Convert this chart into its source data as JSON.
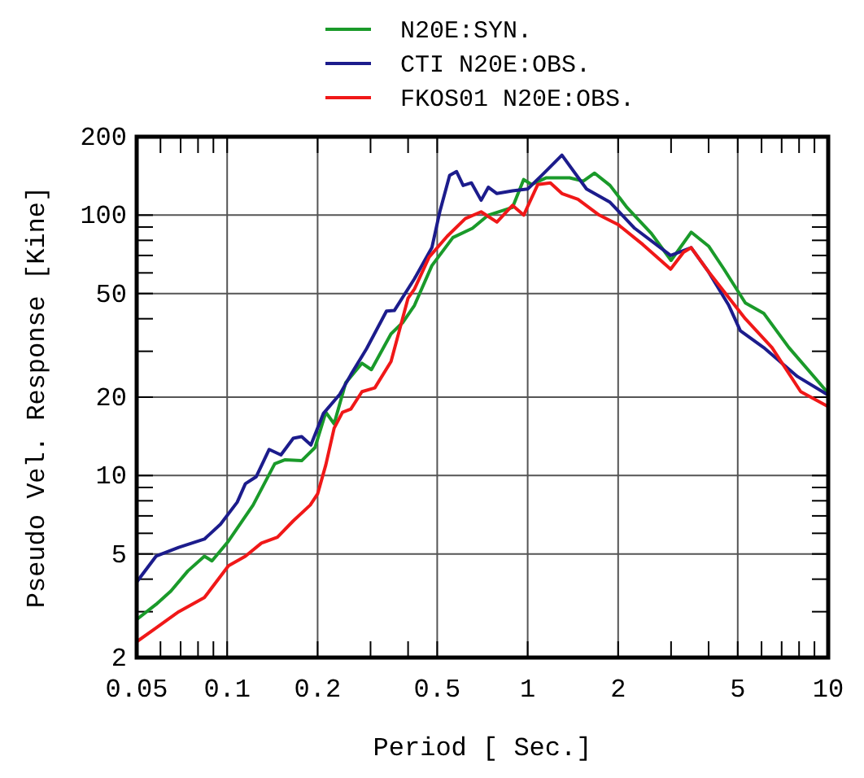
{
  "chart_data": {
    "type": "line",
    "xlabel": "Period [ Sec.]",
    "ylabel": "Pseudo Vel. Response [Kine]",
    "log": "xy",
    "grid": true,
    "legend": "top",
    "line_style": "solid",
    "marker": "none",
    "xlim": [
      0.05,
      10
    ],
    "ylim": [
      2,
      200
    ],
    "xticks": [
      0.05,
      {
        "value": 0.06,
        "label": null
      },
      {
        "value": 0.07,
        "label": null
      },
      {
        "value": 0.08,
        "label": null
      },
      {
        "value": 0.09,
        "label": null
      },
      0.1,
      0.2,
      {
        "value": 0.3,
        "label": null
      },
      {
        "value": 0.4,
        "label": null
      },
      0.5,
      1,
      2,
      {
        "value": 3,
        "label": null
      },
      {
        "value": 4,
        "label": null
      },
      5,
      {
        "value": 6,
        "label": null
      },
      {
        "value": 7,
        "label": null
      },
      {
        "value": 8,
        "label": null
      },
      {
        "value": 9,
        "label": null
      },
      10
    ],
    "yticks": [
      2,
      {
        "value": 3,
        "label": null
      },
      {
        "value": 4,
        "label": null
      },
      5,
      {
        "value": 6,
        "label": null
      },
      {
        "value": 7,
        "label": null
      },
      {
        "value": 8,
        "label": null
      },
      {
        "value": 9,
        "label": null
      },
      10,
      20,
      {
        "value": 30,
        "label": null
      },
      {
        "value": 40,
        "label": null
      },
      50,
      {
        "value": 60,
        "label": null
      },
      {
        "value": 70,
        "label": null
      },
      {
        "value": 80,
        "label": null
      },
      {
        "value": 90,
        "label": null
      },
      100,
      200
    ],
    "series": [
      {
        "name": "N20E:SYN.",
        "color": "#1a9a2a",
        "x": [
          0.05,
          0.058,
          0.065,
          0.074,
          0.084,
          0.089,
          0.101,
          0.122,
          0.144,
          0.156,
          0.177,
          0.196,
          0.213,
          0.227,
          0.248,
          0.281,
          0.302,
          0.351,
          0.384,
          0.42,
          0.48,
          0.564,
          0.655,
          0.74,
          0.89,
          0.97,
          1.03,
          1.15,
          1.38,
          1.53,
          1.67,
          1.88,
          2.14,
          2.58,
          3.0,
          3.5,
          4.0,
          4.5,
          5.3,
          6.1,
          7.4,
          9.9
        ],
        "values": [
          2.8,
          3.2,
          3.6,
          4.3,
          4.9,
          4.7,
          5.6,
          7.7,
          11.1,
          11.5,
          11.4,
          12.8,
          17.5,
          15.8,
          22.7,
          27,
          25.5,
          35,
          38.7,
          45,
          64,
          82,
          89,
          100,
          107,
          137,
          131,
          139,
          139,
          135,
          145,
          130,
          107,
          85,
          67,
          86,
          76,
          62,
          46,
          42,
          31,
          21
        ]
      },
      {
        "name": "CTI N20E:OBS.",
        "color": "#1c1c8c",
        "x": [
          0.05,
          0.058,
          0.069,
          0.084,
          0.095,
          0.108,
          0.115,
          0.125,
          0.138,
          0.151,
          0.166,
          0.177,
          0.19,
          0.209,
          0.237,
          0.258,
          0.291,
          0.339,
          0.36,
          0.42,
          0.48,
          0.51,
          0.55,
          0.58,
          0.61,
          0.65,
          0.7,
          0.74,
          0.79,
          0.89,
          1.0,
          1.12,
          1.3,
          1.57,
          1.88,
          2.27,
          2.99,
          3.5,
          3.98,
          4.67,
          5.1,
          6.1,
          7.9,
          9.9
        ],
        "values": [
          3.9,
          4.9,
          5.3,
          5.7,
          6.5,
          7.9,
          9.3,
          9.9,
          12.6,
          12,
          13.9,
          14.1,
          13.1,
          17.3,
          20.5,
          24.4,
          30.7,
          42.8,
          43,
          57,
          75,
          103,
          142,
          147,
          130,
          133,
          114,
          128,
          121,
          124,
          126,
          143,
          170,
          126,
          112,
          89,
          70,
          75,
          61,
          45,
          36,
          31,
          24,
          20.5
        ]
      },
      {
        "name": "FKOS01 N20E:OBS.",
        "color": "#f01818",
        "x": [
          0.05,
          0.058,
          0.069,
          0.084,
          0.101,
          0.115,
          0.13,
          0.147,
          0.166,
          0.189,
          0.2,
          0.213,
          0.227,
          0.242,
          0.258,
          0.281,
          0.31,
          0.351,
          0.4,
          0.42,
          0.47,
          0.54,
          0.62,
          0.7,
          0.79,
          0.89,
          0.97,
          1.08,
          1.19,
          1.3,
          1.47,
          1.73,
          2.0,
          2.42,
          2.99,
          3.3,
          3.5,
          3.98,
          5.3,
          6.5,
          8.1,
          9.9
        ],
        "values": [
          2.3,
          2.6,
          3.0,
          3.4,
          4.5,
          4.9,
          5.5,
          5.8,
          6.7,
          7.7,
          8.5,
          11,
          15.2,
          17.5,
          18,
          21,
          21.7,
          27.4,
          48,
          52,
          69,
          83,
          97,
          103,
          94,
          109,
          100,
          131,
          133,
          121,
          115,
          100,
          92,
          77,
          62,
          72,
          75,
          61,
          40,
          31,
          21,
          18.5
        ]
      }
    ]
  }
}
